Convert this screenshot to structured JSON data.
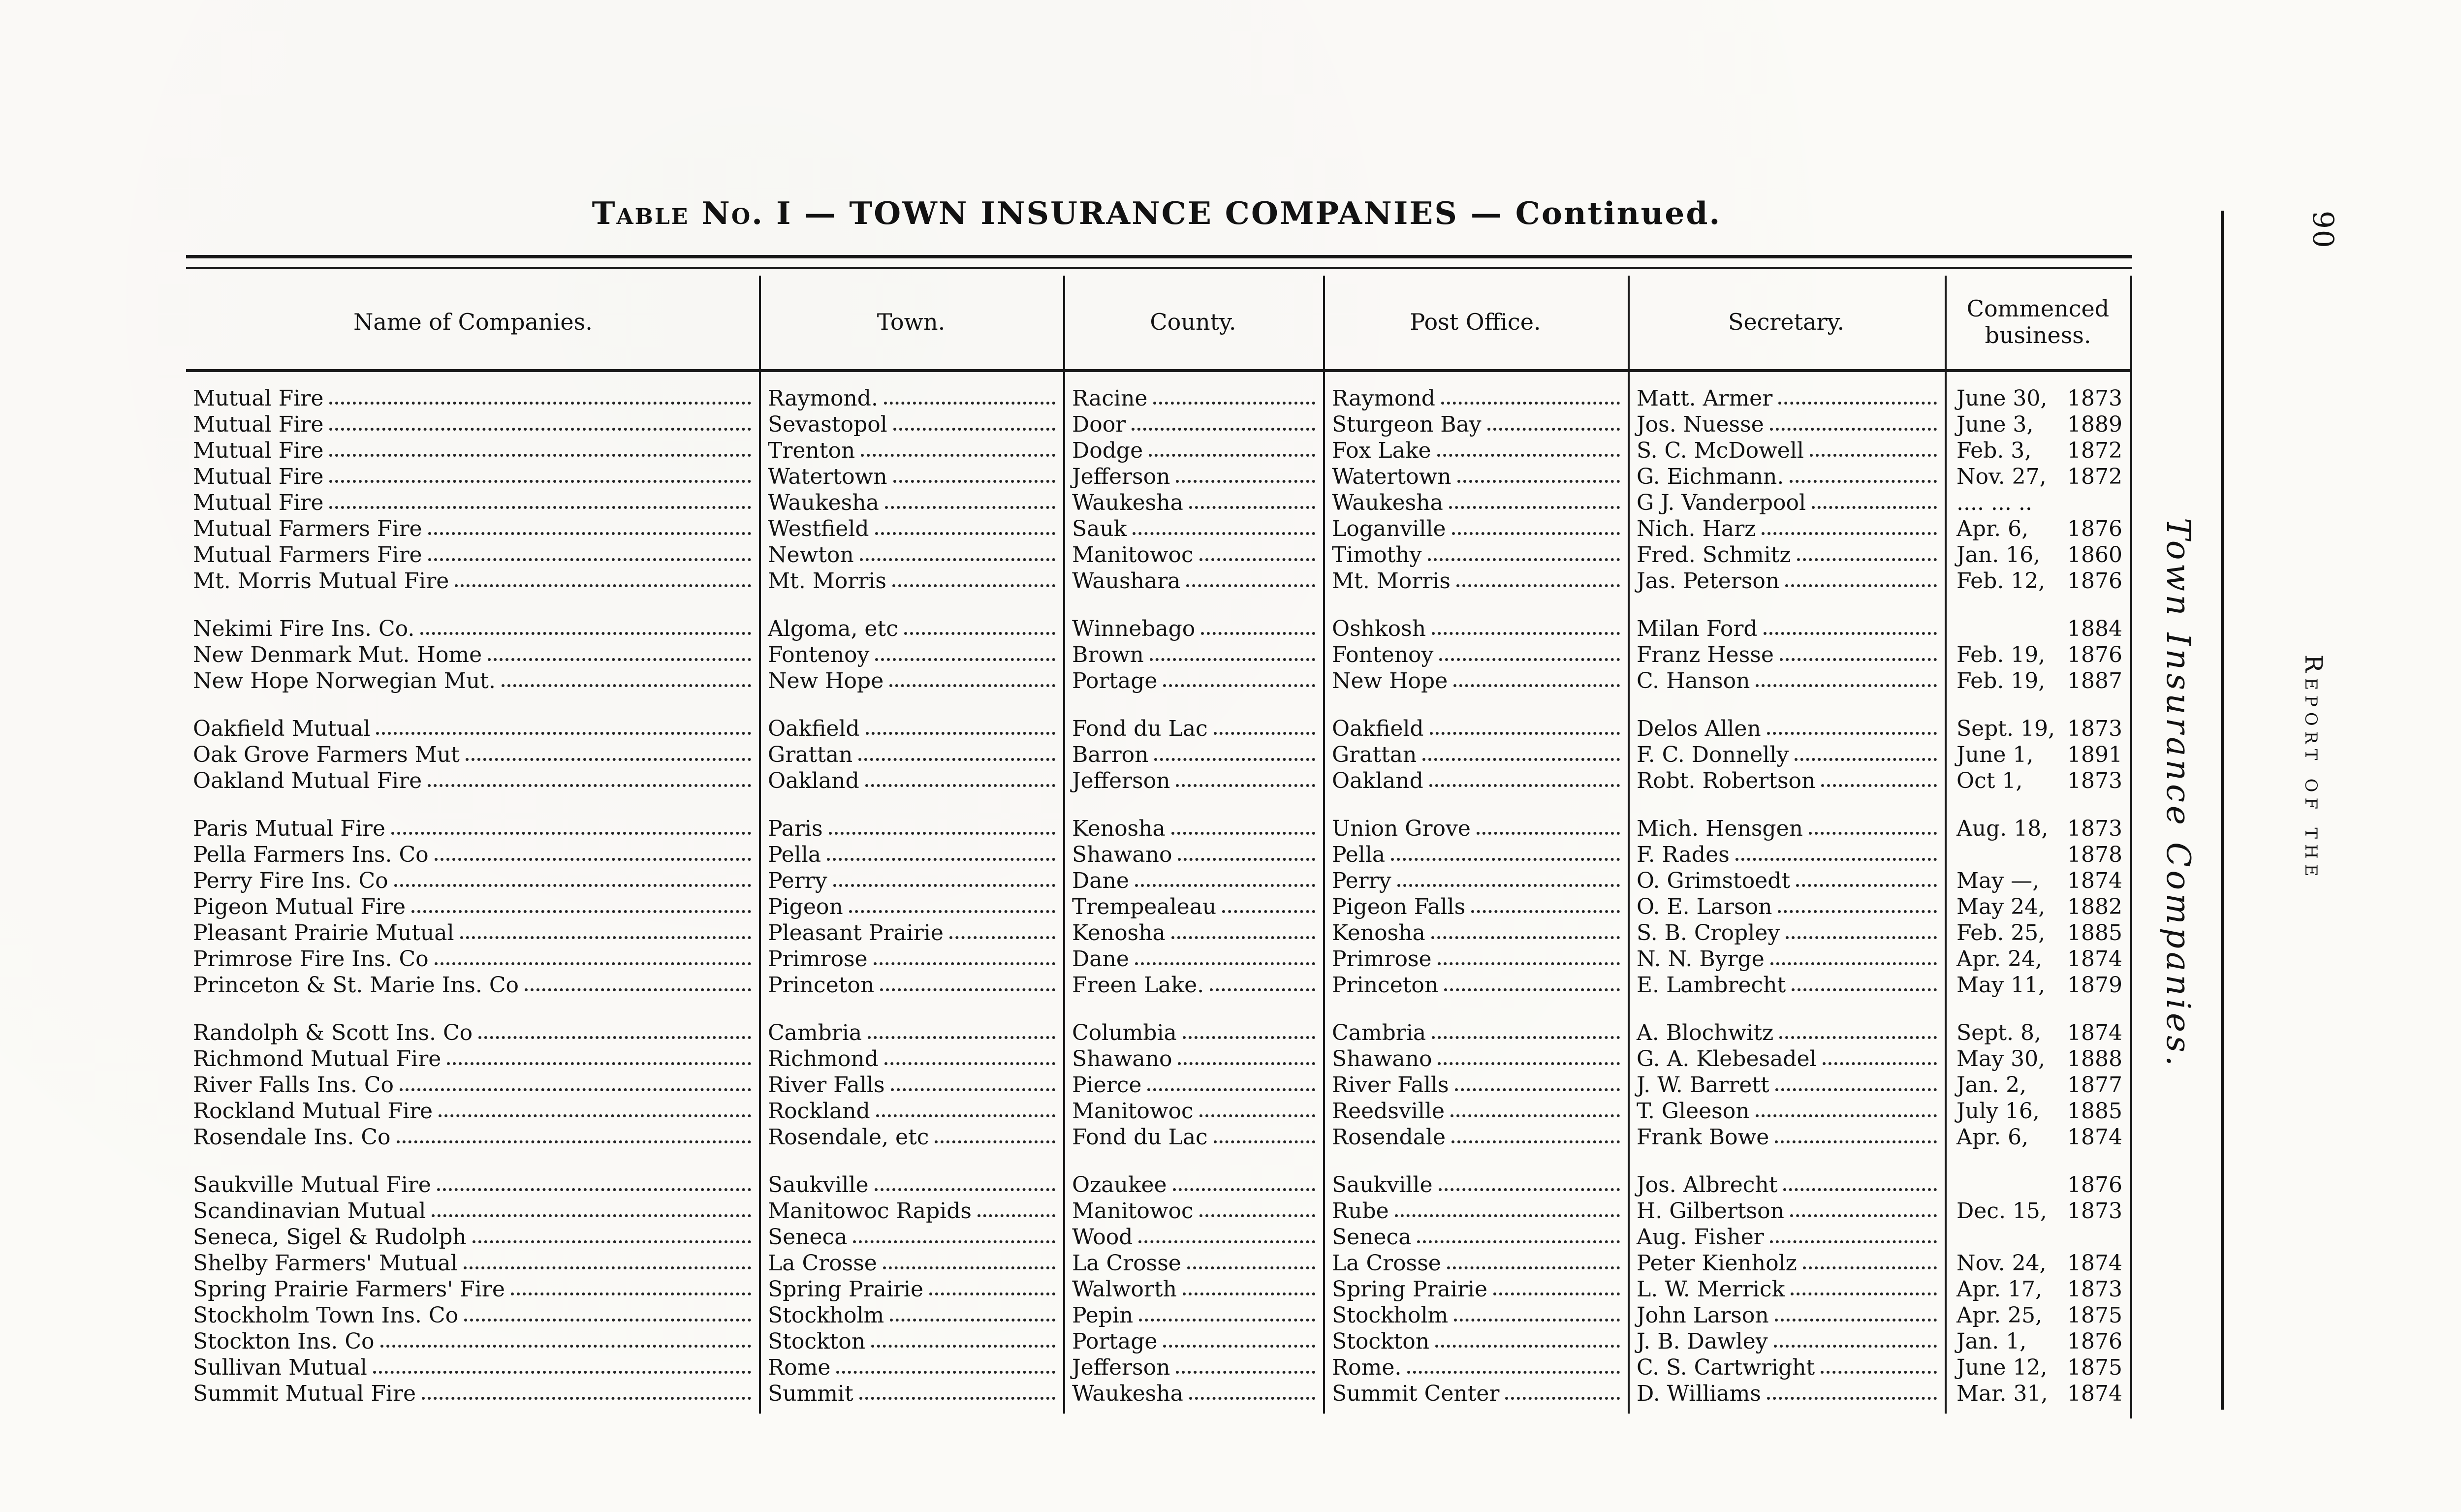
{
  "page": {
    "title": "Table No. I — TOWN INSURANCE COMPANIES — Continued.",
    "title_parts": {
      "prefix": "Table No. I",
      "middle": "— TOWN INSURANCE COMPANIES —",
      "suffix": "Continued."
    },
    "page_number": "90",
    "margin_note_italic": "Town Insurance Companies.",
    "margin_note_caps": "Report of the"
  },
  "table": {
    "columns": [
      "Name of Companies.",
      "Town.",
      "County.",
      "Post Office.",
      "Secretary.",
      "Commenced business."
    ],
    "groups": [
      {
        "rows": [
          [
            "Mutual Fire",
            "Raymond.",
            "Racine",
            "Raymond",
            "Matt. Armer",
            "June 30, 1873"
          ],
          [
            "Mutual Fire",
            "Sevastopol",
            "Door",
            "Sturgeon Bay",
            "Jos. Nuesse",
            "June 3, 1889"
          ],
          [
            "Mutual Fire",
            "Trenton",
            "Dodge",
            "Fox Lake",
            "S. C. McDowell",
            "Feb. 3, 1872"
          ],
          [
            "Mutual Fire",
            "Watertown",
            "Jefferson",
            "Watertown",
            "G. Eichmann.",
            "Nov. 27, 1872"
          ],
          [
            "Mutual Fire",
            "Waukesha",
            "Waukesha",
            "Waukesha",
            "G J. Vanderpool",
            ".... ... .."
          ],
          [
            "Mutual Farmers Fire",
            "Westfield",
            "Sauk",
            "Loganville",
            "Nich. Harz",
            "Apr. 6, 1876"
          ],
          [
            "Mutual Farmers Fire",
            "Newton",
            "Manitowoc",
            "Timothy",
            "Fred. Schmitz",
            "Jan. 16, 1860"
          ],
          [
            "Mt. Morris Mutual Fire",
            "Mt. Morris",
            "Waushara",
            "Mt. Morris",
            "Jas. Peterson",
            "Feb. 12, 1876"
          ]
        ]
      },
      {
        "rows": [
          [
            "Nekimi Fire Ins. Co.",
            "Algoma, etc",
            "Winnebago",
            "Oshkosh",
            "Milan Ford",
            "1884"
          ],
          [
            "New Denmark Mut. Home",
            "Fontenoy",
            "Brown",
            "Fontenoy",
            "Franz Hesse",
            "Feb. 19, 1876"
          ],
          [
            "New Hope Norwegian Mut.",
            "New Hope",
            "Portage",
            "New Hope",
            "C. Hanson",
            "Feb. 19, 1887"
          ]
        ]
      },
      {
        "rows": [
          [
            "Oakfield Mutual",
            "Oakfield",
            "Fond du Lac",
            "Oakfield",
            "Delos Allen",
            "Sept. 19, 1873"
          ],
          [
            "Oak Grove Farmers Mut",
            "Grattan",
            "Barron",
            "Grattan",
            "F. C. Donnelly",
            "June 1, 1891"
          ],
          [
            "Oakland Mutual Fire",
            "Oakland",
            "Jefferson",
            "Oakland",
            "Robt. Robertson",
            "Oct 1, 1873"
          ]
        ]
      },
      {
        "rows": [
          [
            "Paris Mutual Fire",
            "Paris",
            "Kenosha",
            "Union Grove",
            "Mich. Hensgen",
            "Aug. 18, 1873"
          ],
          [
            "Pella Farmers Ins. Co",
            "Pella",
            "Shawano",
            "Pella",
            "F. Rades",
            "1878"
          ],
          [
            "Perry Fire Ins. Co",
            "Perry",
            "Dane",
            "Perry",
            "O. Grimstoedt",
            "May —, 1874"
          ],
          [
            "Pigeon Mutual Fire",
            "Pigeon",
            "Trempealeau",
            "Pigeon Falls",
            "O. E. Larson",
            "May 24, 1882"
          ],
          [
            "Pleasant Prairie Mutual",
            "Pleasant Prairie",
            "Kenosha",
            "Kenosha",
            "S. B. Cropley",
            "Feb. 25, 1885"
          ],
          [
            "Primrose Fire Ins. Co",
            "Primrose",
            "Dane",
            "Primrose",
            "N. N. Byrge",
            "Apr. 24, 1874"
          ],
          [
            "Princeton & St. Marie Ins. Co",
            "Princeton",
            "Freen Lake.",
            "Princeton",
            "E. Lambrecht",
            "May 11, 1879"
          ]
        ]
      },
      {
        "rows": [
          [
            "Randolph & Scott Ins. Co",
            "Cambria",
            "Columbia",
            "Cambria",
            "A. Blochwitz",
            "Sept. 8, 1874"
          ],
          [
            "Richmond Mutual Fire",
            "Richmond",
            "Shawano",
            "Shawano",
            "G. A. Klebesadel",
            "May 30, 1888"
          ],
          [
            "River Falls Ins. Co",
            "River Falls",
            "Pierce",
            "River Falls",
            "J. W. Barrett",
            "Jan. 2, 1877"
          ],
          [
            "Rockland Mutual Fire",
            "Rockland",
            "Manitowoc",
            "Reedsville",
            "T. Gleeson",
            "July 16, 1885"
          ],
          [
            "Rosendale Ins. Co",
            "Rosendale, etc",
            "Fond du Lac",
            "Rosendale",
            "Frank Bowe",
            "Apr. 6, 1874"
          ]
        ]
      },
      {
        "rows": [
          [
            "Saukville Mutual Fire",
            "Saukville",
            "Ozaukee",
            "Saukville",
            "Jos. Albrecht",
            "1876"
          ],
          [
            "Scandinavian Mutual",
            "Manitowoc Rapids",
            "Manitowoc",
            "Rube",
            "H. Gilbertson",
            "Dec. 15, 1873"
          ],
          [
            "Seneca, Sigel & Rudolph",
            "Seneca",
            "Wood",
            "Seneca",
            "Aug. Fisher",
            ""
          ],
          [
            "Shelby Farmers' Mutual",
            "La Crosse",
            "La Crosse",
            "La Crosse",
            "Peter Kienholz",
            "Nov. 24, 1874"
          ],
          [
            "Spring Prairie Farmers' Fire",
            "Spring Prairie",
            "Walworth",
            "Spring Prairie",
            "L. W. Merrick",
            "Apr. 17, 1873"
          ],
          [
            "Stockholm Town Ins. Co",
            "Stockholm",
            "Pepin",
            "Stockholm",
            "John Larson",
            "Apr. 25, 1875"
          ],
          [
            "Stockton Ins. Co",
            "Stockton",
            "Portage",
            "Stockton",
            "J. B. Dawley",
            "Jan. 1, 1876"
          ],
          [
            "Sullivan Mutual",
            "Rome",
            "Jefferson",
            "Rome.",
            "C. S. Cartwright",
            "June 12, 1875"
          ],
          [
            "Summit Mutual Fire",
            "Summit",
            "Waukesha",
            "Summit Center",
            "D. Williams",
            "Mar. 31, 1874"
          ]
        ]
      }
    ]
  }
}
